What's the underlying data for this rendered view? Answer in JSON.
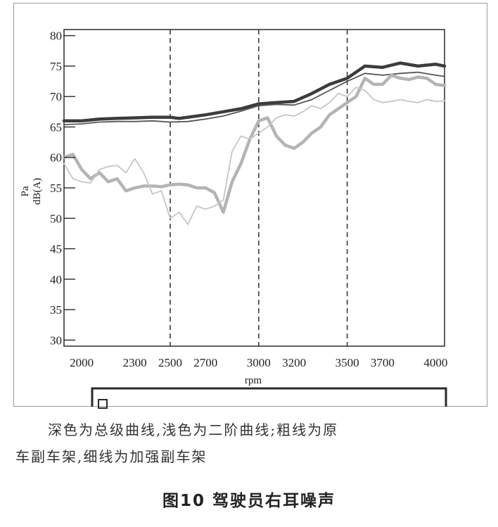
{
  "chart_data": {
    "type": "line",
    "xlabel": "rpm",
    "ylabel": "dB(A)",
    "yunit_label": "Pa",
    "xlim": [
      1900,
      4050
    ],
    "ylim": [
      29,
      81
    ],
    "x_ticks": [
      2000,
      2300,
      2500,
      2700,
      3000,
      3200,
      3500,
      3700,
      4000
    ],
    "y_ticks": [
      30,
      35,
      40,
      45,
      50,
      55,
      60,
      65,
      70,
      75,
      80
    ],
    "reference_lines_x": [
      2500,
      3000,
      3500
    ],
    "grid": false,
    "series": [
      {
        "color": "#3c3c3c",
        "width": 4.5,
        "x": [
          1900,
          2000,
          2100,
          2200,
          2300,
          2400,
          2500,
          2550,
          2600,
          2700,
          2800,
          2900,
          3000,
          3100,
          3200,
          3300,
          3400,
          3500,
          3600,
          3700,
          3800,
          3900,
          4000,
          4050
        ],
        "y": [
          66,
          66,
          66.3,
          66.4,
          66.5,
          66.6,
          66.6,
          66.4,
          66.6,
          67,
          67.5,
          68,
          68.8,
          69,
          69.2,
          70.5,
          72,
          73,
          75,
          74.8,
          75.5,
          75,
          75.3,
          75
        ]
      },
      {
        "color": "#555555",
        "width": 1.8,
        "x": [
          1900,
          2000,
          2100,
          2200,
          2300,
          2400,
          2500,
          2600,
          2700,
          2800,
          2900,
          3000,
          3100,
          3200,
          3300,
          3400,
          3500,
          3600,
          3700,
          3800,
          3900,
          4000,
          4050
        ],
        "y": [
          65.4,
          65.5,
          65.8,
          65.9,
          65.9,
          66,
          65.8,
          65.9,
          66.3,
          66.8,
          67.6,
          68.5,
          68.7,
          68.6,
          69.5,
          71,
          72.5,
          73.8,
          73.5,
          73.8,
          74,
          73.5,
          73.3
        ]
      },
      {
        "color": "#b4b4b4",
        "width": 4.5,
        "x": [
          1900,
          1950,
          2000,
          2050,
          2100,
          2150,
          2200,
          2250,
          2300,
          2350,
          2400,
          2450,
          2500,
          2550,
          2600,
          2650,
          2700,
          2750,
          2800,
          2850,
          2900,
          2950,
          3000,
          3050,
          3100,
          3150,
          3200,
          3250,
          3300,
          3350,
          3400,
          3450,
          3500,
          3550,
          3600,
          3650,
          3700,
          3750,
          3800,
          3850,
          3900,
          3950,
          4000,
          4050
        ],
        "y": [
          60,
          60.5,
          58,
          56.5,
          57.5,
          56,
          56.5,
          54.5,
          55,
          55.3,
          55.3,
          55.2,
          55.5,
          55.6,
          55.5,
          55,
          55,
          54.2,
          51,
          56,
          59,
          63,
          66,
          66.5,
          63.5,
          62,
          61.5,
          62.5,
          64,
          65,
          67,
          68,
          69,
          70,
          73,
          72,
          72,
          73.5,
          73,
          72.8,
          73.2,
          73,
          72,
          71.8
        ]
      },
      {
        "color": "#c6c6c6",
        "width": 1.8,
        "x": [
          1900,
          1950,
          2000,
          2050,
          2100,
          2150,
          2200,
          2250,
          2300,
          2350,
          2400,
          2450,
          2500,
          2550,
          2600,
          2650,
          2700,
          2750,
          2800,
          2850,
          2900,
          2950,
          3000,
          3050,
          3100,
          3150,
          3200,
          3250,
          3300,
          3350,
          3400,
          3450,
          3500,
          3550,
          3600,
          3650,
          3700,
          3750,
          3800,
          3850,
          3900,
          3950,
          4000,
          4050
        ],
        "y": [
          59,
          56.5,
          56,
          55.8,
          58,
          58.5,
          58.7,
          57.5,
          59.8,
          57.5,
          54,
          54.5,
          50,
          51,
          49,
          52,
          51.5,
          52,
          53,
          61,
          63.5,
          63,
          64,
          65,
          66.5,
          67,
          66.8,
          67.5,
          68.5,
          68,
          69,
          70.5,
          70,
          71.5,
          71,
          69.5,
          69,
          69.2,
          69.5,
          69.2,
          69,
          69.5,
          69.2,
          69.3
        ]
      }
    ]
  },
  "caption_line1": "深色为总级曲线,浅色为二阶曲线;粗线为原",
  "caption_line2": "车副车架,细线为加强副车架",
  "figure_title": "图10  驾驶员右耳噪声"
}
